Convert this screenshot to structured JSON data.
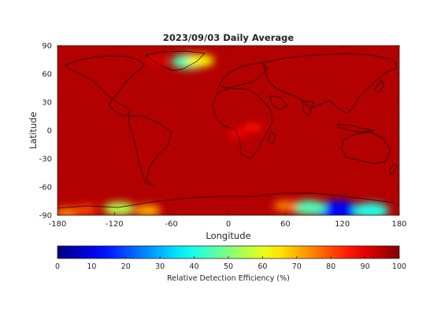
{
  "chart_data": {
    "type": "heatmap",
    "title": "2023/09/03 Daily Average",
    "xlabel": "Longitude",
    "ylabel": "Latitude",
    "xlim": [
      -180,
      180
    ],
    "ylim": [
      -90,
      90
    ],
    "xticks": [
      "-180",
      "-120",
      "-60",
      "0",
      "60",
      "120",
      "180"
    ],
    "xtick_values": [
      -180,
      -120,
      -60,
      0,
      60,
      120,
      180
    ],
    "yticks": [
      "90",
      "60",
      "30",
      "0",
      "-30",
      "-60",
      "-90"
    ],
    "ytick_values": [
      90,
      60,
      30,
      0,
      -30,
      -60,
      -90
    ],
    "colorbar": {
      "label": "Relative Detection Efficiency (%)",
      "ticks": [
        "0",
        "10",
        "20",
        "30",
        "40",
        "50",
        "60",
        "70",
        "80",
        "90",
        "100"
      ],
      "tick_values": [
        0,
        10,
        20,
        30,
        40,
        50,
        60,
        70,
        80,
        90,
        100
      ],
      "colormap": "jet",
      "range": [
        0,
        100
      ]
    },
    "background_value": 95,
    "regions": [
      {
        "lon": 10,
        "lat": -3,
        "value": 88
      },
      {
        "lon": 26,
        "lat": 3,
        "value": 86
      },
      {
        "lon": -42,
        "lat": 73,
        "value": 45
      },
      {
        "lon": -30,
        "lat": 74,
        "value": 62
      },
      {
        "lon": -75,
        "lat": 74,
        "value": 90
      },
      {
        "lon": 115,
        "lat": -85,
        "value": 12
      },
      {
        "lon": 85,
        "lat": -82,
        "value": 45
      },
      {
        "lon": 150,
        "lat": -85,
        "value": 40
      },
      {
        "lon": 60,
        "lat": -80,
        "value": 75
      },
      {
        "lon": -115,
        "lat": -83,
        "value": 55
      },
      {
        "lon": -85,
        "lat": -85,
        "value": 70
      },
      {
        "lon": -150,
        "lat": -84,
        "value": 80
      },
      {
        "lon": -170,
        "lat": -87,
        "value": 75
      }
    ],
    "basemap": "coastlines"
  }
}
